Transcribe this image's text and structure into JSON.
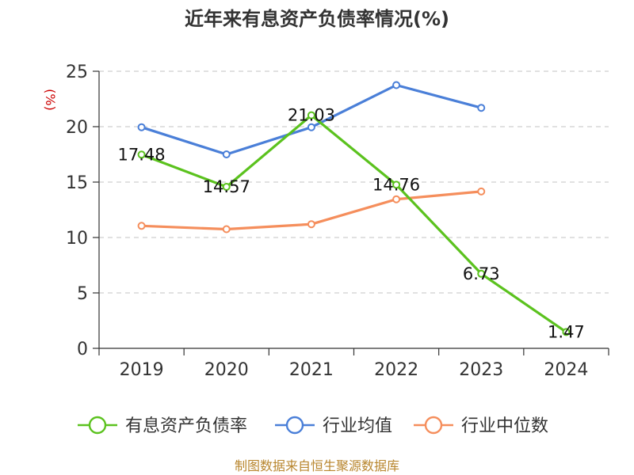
{
  "chart_data": {
    "type": "line",
    "title": "近年来有息资产负债率情况(%)",
    "ylabel": "(%)",
    "xlabel": "",
    "categories": [
      "2019",
      "2020",
      "2021",
      "2022",
      "2023",
      "2024"
    ],
    "ylim": [
      0,
      25
    ],
    "yticks": [
      0,
      5,
      10,
      15,
      20,
      25
    ],
    "grid": "horizontal dashed",
    "legend_position": "bottom",
    "series": [
      {
        "name": "有息资产负债率",
        "color": "#5bc21e",
        "values": [
          17.48,
          14.57,
          21.03,
          14.76,
          6.73,
          1.47
        ],
        "labels": [
          "17.48",
          "14.57",
          "21.03",
          "14.76",
          "6.73",
          "1.47"
        ]
      },
      {
        "name": "行业均值",
        "color": "#4a7fd8",
        "values": [
          19.95,
          17.5,
          19.95,
          23.75,
          21.7,
          null
        ]
      },
      {
        "name": "行业中位数",
        "color": "#f58e5c",
        "values": [
          11.05,
          10.75,
          11.2,
          13.45,
          14.15,
          null
        ]
      }
    ]
  },
  "footer": {
    "source": "制图数据来自恒生聚源数据库"
  }
}
